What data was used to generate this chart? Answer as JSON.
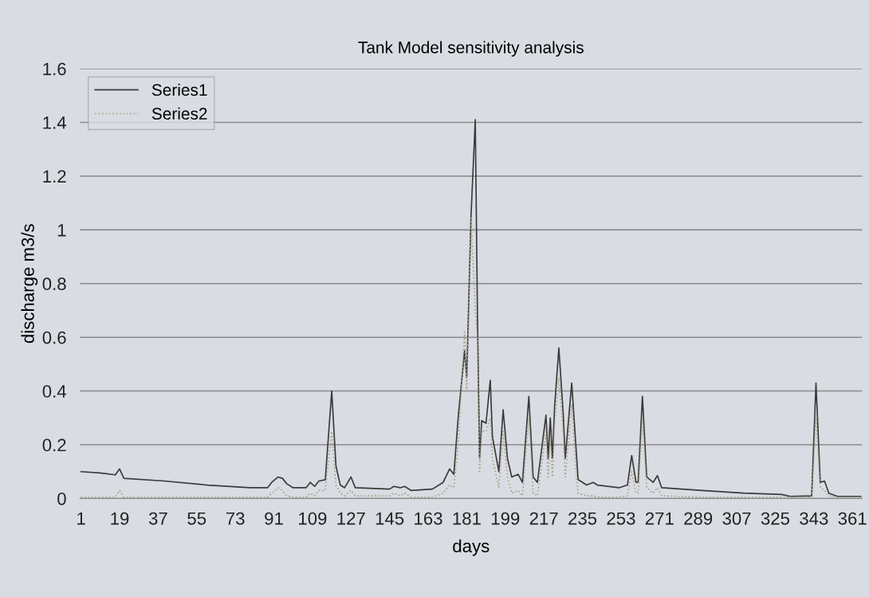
{
  "chart_data": {
    "type": "line",
    "title": "Tank Model sensitivity analysis",
    "xlabel": "days",
    "ylabel": "discharge m3/s",
    "x": [
      1,
      10,
      17,
      19,
      21,
      40,
      60,
      80,
      88,
      90,
      93,
      95,
      97,
      100,
      106,
      108,
      110,
      112,
      115,
      118,
      120,
      122,
      124,
      127,
      129,
      145,
      147,
      150,
      152,
      155,
      165,
      170,
      173,
      175,
      177,
      180,
      181,
      183,
      185,
      186,
      187,
      188,
      190,
      192,
      193,
      196,
      198,
      200,
      202,
      205,
      207,
      210,
      212,
      214,
      218,
      219,
      220,
      221,
      222,
      224,
      226,
      227,
      230,
      232,
      233,
      237,
      240,
      242,
      252,
      256,
      258,
      260,
      261,
      263,
      265,
      268,
      270,
      272,
      291,
      310,
      328,
      332,
      342,
      344,
      346,
      348,
      350,
      354,
      365
    ],
    "series": [
      {
        "name": "Series1",
        "color": "#3a3a3a",
        "line_style": "solid",
        "values": [
          0.1,
          0.095,
          0.088,
          0.11,
          0.075,
          0.065,
          0.05,
          0.04,
          0.04,
          0.06,
          0.08,
          0.075,
          0.055,
          0.04,
          0.04,
          0.06,
          0.045,
          0.065,
          0.07,
          0.4,
          0.12,
          0.05,
          0.04,
          0.08,
          0.04,
          0.035,
          0.045,
          0.04,
          0.045,
          0.03,
          0.035,
          0.06,
          0.11,
          0.09,
          0.3,
          0.55,
          0.45,
          1.05,
          1.41,
          0.69,
          0.15,
          0.29,
          0.28,
          0.44,
          0.23,
          0.1,
          0.33,
          0.15,
          0.08,
          0.09,
          0.06,
          0.38,
          0.08,
          0.06,
          0.31,
          0.15,
          0.3,
          0.15,
          0.34,
          0.56,
          0.32,
          0.15,
          0.43,
          0.19,
          0.07,
          0.05,
          0.06,
          0.05,
          0.04,
          0.05,
          0.16,
          0.06,
          0.06,
          0.38,
          0.08,
          0.06,
          0.085,
          0.04,
          0.03,
          0.02,
          0.015,
          0.008,
          0.01,
          0.43,
          0.06,
          0.065,
          0.02,
          0.008,
          0.008
        ]
      },
      {
        "name": "Series2",
        "color": "#a89f84",
        "line_style": "dotted",
        "values": [
          0.005,
          0.005,
          0.005,
          0.03,
          0.005,
          0.005,
          0.005,
          0.005,
          0.005,
          0.02,
          0.04,
          0.03,
          0.01,
          0.005,
          0.005,
          0.02,
          0.01,
          0.03,
          0.03,
          0.25,
          0.05,
          0.02,
          0.01,
          0.03,
          0.01,
          0.01,
          0.02,
          0.01,
          0.02,
          0.005,
          0.005,
          0.02,
          0.05,
          0.04,
          0.2,
          0.62,
          0.4,
          1.05,
          0.7,
          0.6,
          0.1,
          0.25,
          0.25,
          0.3,
          0.15,
          0.04,
          0.25,
          0.08,
          0.02,
          0.03,
          0.01,
          0.3,
          0.02,
          0.01,
          0.25,
          0.08,
          0.22,
          0.08,
          0.28,
          0.45,
          0.25,
          0.08,
          0.35,
          0.1,
          0.02,
          0.01,
          0.01,
          0.005,
          0.005,
          0.01,
          0.1,
          0.02,
          0.02,
          0.3,
          0.04,
          0.02,
          0.04,
          0.01,
          0.005,
          0.005,
          0.005,
          0.005,
          0.005,
          0.3,
          0.04,
          0.03,
          0.01,
          0.005,
          0.005
        ]
      }
    ],
    "xlim": [
      0.5,
      365.5
    ],
    "xticks": [
      1,
      19,
      37,
      55,
      73,
      91,
      109,
      127,
      145,
      163,
      181,
      199,
      217,
      235,
      253,
      271,
      289,
      307,
      325,
      343,
      361
    ],
    "ylim": [
      0,
      1.6
    ],
    "yticks": [
      0,
      0.2,
      0.4,
      0.6,
      0.8,
      1,
      1.2,
      1.4,
      1.6
    ],
    "grid": "y",
    "legend": "top left",
    "marker": "none"
  }
}
